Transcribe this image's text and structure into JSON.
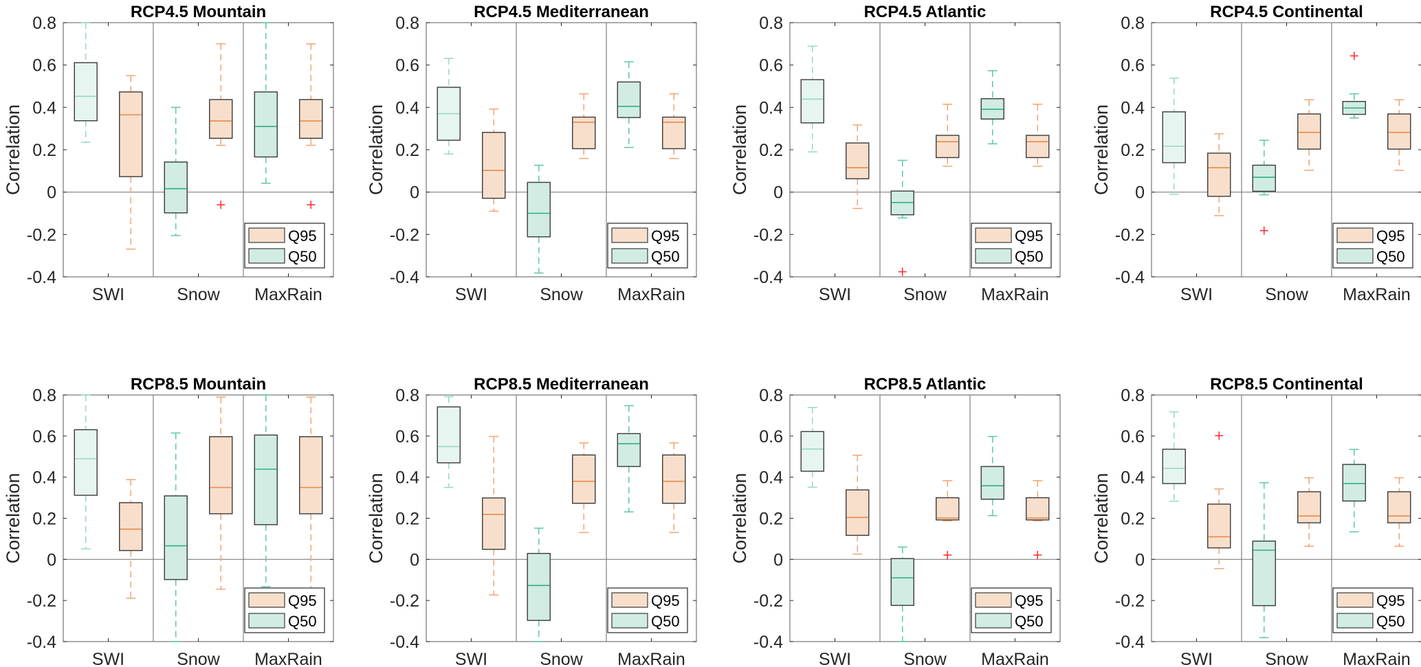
{
  "colors": {
    "q95_fill": "#f8dfcb",
    "q95_line": "#e98a4c",
    "q95_whisker": "#f0a472",
    "q50_fill": "#d1ece3",
    "q50_line": "#2fae85",
    "q50_whisker": "#5cc8a6",
    "q50_light_fill": "#e7f5f1",
    "q50_light_line": "#96d9c5",
    "outlier": "#ff2a2a",
    "axis": "#262626",
    "grid": "#808080",
    "box_edge": "#3a3a3a"
  },
  "chart_data": [
    {
      "type": "box",
      "title": "RCP4.5 Mountain",
      "ylabel": "Correlation",
      "ylim": [
        -0.4,
        0.8
      ],
      "yticks": [
        "-0.4",
        "-0.2",
        "0",
        "0.2",
        "0.4",
        "0.6",
        "0.8"
      ],
      "categories": [
        "SWI",
        "Snow",
        "MaxRain"
      ],
      "legend": [
        "Q95",
        "Q50"
      ],
      "legend_position": "bottom-right",
      "boxes": [
        {
          "category": "SWI",
          "series": "Q50",
          "low": 0.235,
          "q1": 0.337,
          "median": 0.452,
          "q3": 0.611,
          "high": 0.8,
          "outliers": []
        },
        {
          "category": "SWI",
          "series": "Q95",
          "low": -0.269,
          "q1": 0.073,
          "median": 0.365,
          "q3": 0.473,
          "high": 0.55,
          "outliers": []
        },
        {
          "category": "Snow",
          "series": "Q50",
          "low": -0.205,
          "q1": -0.098,
          "median": 0.016,
          "q3": 0.142,
          "high": 0.4,
          "outliers": []
        },
        {
          "category": "Snow",
          "series": "Q95",
          "low": 0.221,
          "q1": 0.254,
          "median": 0.336,
          "q3": 0.437,
          "high": 0.7,
          "outliers": [
            -0.06
          ]
        },
        {
          "category": "MaxRain",
          "series": "Q50",
          "low": 0.042,
          "q1": 0.166,
          "median": 0.31,
          "q3": 0.473,
          "high": 0.8,
          "outliers": []
        },
        {
          "category": "MaxRain",
          "series": "Q95",
          "low": 0.221,
          "q1": 0.254,
          "median": 0.336,
          "q3": 0.437,
          "high": 0.7,
          "outliers": [
            -0.06
          ]
        }
      ]
    },
    {
      "type": "box",
      "title": "RCP4.5 Mediterranean",
      "ylabel": "Correlation",
      "ylim": [
        -0.4,
        0.8
      ],
      "yticks": [
        "-0.4",
        "-0.2",
        "0",
        "0.2",
        "0.4",
        "0.6",
        "0.8"
      ],
      "categories": [
        "SWI",
        "Snow",
        "MaxRain"
      ],
      "legend": [
        "Q95",
        "Q50"
      ],
      "legend_position": "bottom-right",
      "boxes": [
        {
          "category": "SWI",
          "series": "Q50",
          "low": 0.18,
          "q1": 0.245,
          "median": 0.37,
          "q3": 0.495,
          "high": 0.631,
          "outliers": []
        },
        {
          "category": "SWI",
          "series": "Q95",
          "low": -0.09,
          "q1": -0.029,
          "median": 0.102,
          "q3": 0.282,
          "high": 0.392,
          "outliers": []
        },
        {
          "category": "Snow",
          "series": "Q50",
          "low": -0.382,
          "q1": -0.211,
          "median": -0.1,
          "q3": 0.046,
          "high": 0.127,
          "outliers": []
        },
        {
          "category": "Snow",
          "series": "Q95",
          "low": 0.159,
          "q1": 0.205,
          "median": 0.33,
          "q3": 0.354,
          "high": 0.464,
          "outliers": []
        },
        {
          "category": "MaxRain",
          "series": "Q50",
          "low": 0.211,
          "q1": 0.352,
          "median": 0.405,
          "q3": 0.52,
          "high": 0.615,
          "outliers": []
        },
        {
          "category": "MaxRain",
          "series": "Q95",
          "low": 0.159,
          "q1": 0.205,
          "median": 0.33,
          "q3": 0.354,
          "high": 0.464,
          "outliers": []
        }
      ]
    },
    {
      "type": "box",
      "title": "RCP4.5 Atlantic",
      "ylabel": "Correlation",
      "ylim": [
        -0.4,
        0.8
      ],
      "yticks": [
        "-0.4",
        "-0.2",
        "0",
        "0.2",
        "0.4",
        "0.6",
        "0.8"
      ],
      "categories": [
        "SWI",
        "Snow",
        "MaxRain"
      ],
      "legend": [
        "Q95",
        "Q50"
      ],
      "legend_position": "bottom-right",
      "boxes": [
        {
          "category": "SWI",
          "series": "Q50",
          "low": 0.19,
          "q1": 0.327,
          "median": 0.439,
          "q3": 0.531,
          "high": 0.689,
          "outliers": []
        },
        {
          "category": "SWI",
          "series": "Q95",
          "low": -0.077,
          "q1": 0.063,
          "median": 0.115,
          "q3": 0.232,
          "high": 0.317,
          "outliers": []
        },
        {
          "category": "Snow",
          "series": "Q50",
          "low": -0.122,
          "q1": -0.107,
          "median": -0.049,
          "q3": 0.005,
          "high": 0.15,
          "outliers": [
            -0.376
          ]
        },
        {
          "category": "Snow",
          "series": "Q95",
          "low": 0.122,
          "q1": 0.163,
          "median": 0.238,
          "q3": 0.268,
          "high": 0.415,
          "outliers": []
        },
        {
          "category": "MaxRain",
          "series": "Q50",
          "low": 0.228,
          "q1": 0.345,
          "median": 0.391,
          "q3": 0.441,
          "high": 0.573,
          "outliers": []
        },
        {
          "category": "MaxRain",
          "series": "Q95",
          "low": 0.122,
          "q1": 0.163,
          "median": 0.238,
          "q3": 0.268,
          "high": 0.415,
          "outliers": []
        }
      ]
    },
    {
      "type": "box",
      "title": "RCP4.5 Continental",
      "ylabel": "Correlation",
      "ylim": [
        -0.4,
        0.8
      ],
      "yticks": [
        "-0.4",
        "-0.2",
        "0",
        "0.2",
        "0.4",
        "0.6",
        "0.8"
      ],
      "categories": [
        "SWI",
        "Snow",
        "MaxRain"
      ],
      "legend": [
        "Q95",
        "Q50"
      ],
      "legend_position": "bottom-right",
      "boxes": [
        {
          "category": "SWI",
          "series": "Q50",
          "low": -0.01,
          "q1": 0.139,
          "median": 0.217,
          "q3": 0.379,
          "high": 0.538,
          "outliers": []
        },
        {
          "category": "SWI",
          "series": "Q95",
          "low": -0.111,
          "q1": -0.02,
          "median": 0.115,
          "q3": 0.184,
          "high": 0.275,
          "outliers": []
        },
        {
          "category": "Snow",
          "series": "Q50",
          "low": -0.013,
          "q1": 0.004,
          "median": 0.07,
          "q3": 0.127,
          "high": 0.245,
          "outliers": [
            -0.182
          ]
        },
        {
          "category": "Snow",
          "series": "Q95",
          "low": 0.103,
          "q1": 0.203,
          "median": 0.282,
          "q3": 0.369,
          "high": 0.436,
          "outliers": []
        },
        {
          "category": "MaxRain",
          "series": "Q50",
          "low": 0.35,
          "q1": 0.367,
          "median": 0.397,
          "q3": 0.428,
          "high": 0.464,
          "outliers": [
            0.643
          ]
        },
        {
          "category": "MaxRain",
          "series": "Q95",
          "low": 0.103,
          "q1": 0.203,
          "median": 0.282,
          "q3": 0.369,
          "high": 0.436,
          "outliers": []
        }
      ]
    },
    {
      "type": "box",
      "title": "RCP8.5 Mountain",
      "ylabel": "Correlation",
      "ylim": [
        -0.4,
        0.8
      ],
      "yticks": [
        "-0.4",
        "-0.2",
        "0",
        "0.2",
        "0.4",
        "0.6",
        "0.8"
      ],
      "categories": [
        "SWI",
        "Snow",
        "MaxRain"
      ],
      "legend": [
        "Q95",
        "Q50"
      ],
      "legend_position": "bottom-right",
      "boxes": [
        {
          "category": "SWI",
          "series": "Q50",
          "low": 0.051,
          "q1": 0.312,
          "median": 0.49,
          "q3": 0.631,
          "high": 0.8,
          "outliers": []
        },
        {
          "category": "SWI",
          "series": "Q95",
          "low": -0.189,
          "q1": 0.043,
          "median": 0.147,
          "q3": 0.276,
          "high": 0.388,
          "outliers": []
        },
        {
          "category": "Snow",
          "series": "Q50",
          "low": -0.4,
          "q1": -0.098,
          "median": 0.066,
          "q3": 0.309,
          "high": 0.615,
          "outliers": []
        },
        {
          "category": "Snow",
          "series": "Q95",
          "low": -0.145,
          "q1": 0.222,
          "median": 0.35,
          "q3": 0.597,
          "high": 0.79,
          "outliers": []
        },
        {
          "category": "MaxRain",
          "series": "Q50",
          "low": -0.133,
          "q1": 0.169,
          "median": 0.439,
          "q3": 0.605,
          "high": 0.8,
          "outliers": []
        },
        {
          "category": "MaxRain",
          "series": "Q95",
          "low": -0.145,
          "q1": 0.222,
          "median": 0.35,
          "q3": 0.597,
          "high": 0.79,
          "outliers": []
        }
      ]
    },
    {
      "type": "box",
      "title": "RCP8.5 Mediterranean",
      "ylabel": "Correlation",
      "ylim": [
        -0.4,
        0.8
      ],
      "yticks": [
        "-0.4",
        "-0.2",
        "0",
        "0.2",
        "0.4",
        "0.6",
        "0.8"
      ],
      "categories": [
        "SWI",
        "Snow",
        "MaxRain"
      ],
      "legend": [
        "Q95",
        "Q50"
      ],
      "legend_position": "bottom-right",
      "boxes": [
        {
          "category": "SWI",
          "series": "Q50",
          "low": 0.35,
          "q1": 0.47,
          "median": 0.549,
          "q3": 0.742,
          "high": 0.792,
          "outliers": []
        },
        {
          "category": "SWI",
          "series": "Q95",
          "low": -0.173,
          "q1": 0.049,
          "median": 0.219,
          "q3": 0.299,
          "high": 0.598,
          "outliers": []
        },
        {
          "category": "Snow",
          "series": "Q50",
          "low": -0.4,
          "q1": -0.297,
          "median": -0.127,
          "q3": 0.029,
          "high": 0.152,
          "outliers": []
        },
        {
          "category": "Snow",
          "series": "Q95",
          "low": 0.131,
          "q1": 0.273,
          "median": 0.38,
          "q3": 0.508,
          "high": 0.567,
          "outliers": []
        },
        {
          "category": "MaxRain",
          "series": "Q50",
          "low": 0.231,
          "q1": 0.452,
          "median": 0.563,
          "q3": 0.612,
          "high": 0.748,
          "outliers": []
        },
        {
          "category": "MaxRain",
          "series": "Q95",
          "low": 0.131,
          "q1": 0.273,
          "median": 0.38,
          "q3": 0.508,
          "high": 0.567,
          "outliers": []
        }
      ]
    },
    {
      "type": "box",
      "title": "RCP8.5 Atlantic",
      "ylabel": "Correlation",
      "ylim": [
        -0.4,
        0.8
      ],
      "yticks": [
        "-0.4",
        "-0.2",
        "0",
        "0.2",
        "0.4",
        "0.6",
        "0.8"
      ],
      "categories": [
        "SWI",
        "Snow",
        "MaxRain"
      ],
      "legend": [
        "Q95",
        "Q50"
      ],
      "legend_position": "bottom-right",
      "boxes": [
        {
          "category": "SWI",
          "series": "Q50",
          "low": 0.351,
          "q1": 0.429,
          "median": 0.537,
          "q3": 0.622,
          "high": 0.739,
          "outliers": []
        },
        {
          "category": "SWI",
          "series": "Q95",
          "low": 0.026,
          "q1": 0.117,
          "median": 0.204,
          "q3": 0.338,
          "high": 0.507,
          "outliers": []
        },
        {
          "category": "Snow",
          "series": "Q50",
          "low": -0.4,
          "q1": -0.224,
          "median": -0.09,
          "q3": 0.004,
          "high": 0.06,
          "outliers": []
        },
        {
          "category": "Snow",
          "series": "Q95",
          "low": 0.188,
          "q1": 0.192,
          "median": 0.201,
          "q3": 0.3,
          "high": 0.383,
          "outliers": [
            0.021
          ]
        },
        {
          "category": "MaxRain",
          "series": "Q50",
          "low": 0.213,
          "q1": 0.293,
          "median": 0.358,
          "q3": 0.452,
          "high": 0.598,
          "outliers": []
        },
        {
          "category": "MaxRain",
          "series": "Q95",
          "low": 0.188,
          "q1": 0.192,
          "median": 0.201,
          "q3": 0.3,
          "high": 0.383,
          "outliers": [
            0.021
          ]
        }
      ]
    },
    {
      "type": "box",
      "title": "RCP8.5 Continental",
      "ylabel": "Correlation",
      "ylim": [
        -0.4,
        0.8
      ],
      "yticks": [
        "-0.4",
        "-0.2",
        "0",
        "0.2",
        "0.4",
        "0.6",
        "0.8"
      ],
      "categories": [
        "SWI",
        "Snow",
        "MaxRain"
      ],
      "legend": [
        "Q95",
        "Q50"
      ],
      "legend_position": "bottom-right",
      "boxes": [
        {
          "category": "SWI",
          "series": "Q50",
          "low": 0.283,
          "q1": 0.369,
          "median": 0.443,
          "q3": 0.536,
          "high": 0.718,
          "outliers": []
        },
        {
          "category": "SWI",
          "series": "Q95",
          "low": -0.045,
          "q1": 0.056,
          "median": 0.11,
          "q3": 0.269,
          "high": 0.343,
          "outliers": [
            0.602
          ]
        },
        {
          "category": "Snow",
          "series": "Q50",
          "low": -0.381,
          "q1": -0.225,
          "median": 0.045,
          "q3": 0.089,
          "high": 0.373,
          "outliers": []
        },
        {
          "category": "Snow",
          "series": "Q95",
          "low": 0.064,
          "q1": 0.178,
          "median": 0.211,
          "q3": 0.329,
          "high": 0.397,
          "outliers": []
        },
        {
          "category": "MaxRain",
          "series": "Q50",
          "low": 0.134,
          "q1": 0.284,
          "median": 0.369,
          "q3": 0.462,
          "high": 0.535,
          "outliers": []
        },
        {
          "category": "MaxRain",
          "series": "Q95",
          "low": 0.064,
          "q1": 0.178,
          "median": 0.211,
          "q3": 0.329,
          "high": 0.397,
          "outliers": []
        }
      ]
    }
  ]
}
